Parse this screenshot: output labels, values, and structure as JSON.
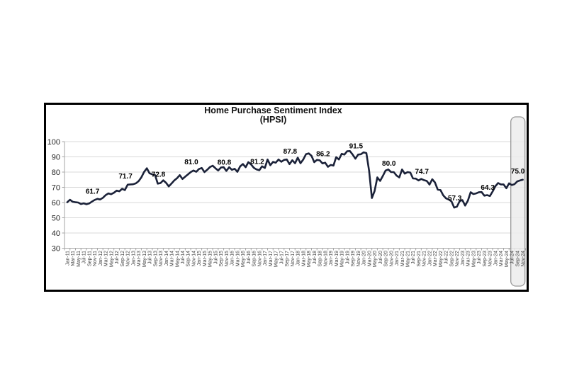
{
  "page": {
    "background": "#ffffff"
  },
  "header": {
    "title_line1": "Home Purchase Sentiment Index",
    "title_line2": "(HPSI)"
  },
  "chart_data": {
    "type": "line",
    "title": "Home Purchase Sentiment Index",
    "subtitle": "(HPSI)",
    "xlabel": "",
    "ylabel": "",
    "ylim": [
      30,
      100
    ],
    "y_ticks": [
      100,
      90,
      80,
      70,
      60,
      50,
      40,
      30
    ],
    "grid": "horizontal",
    "legend": "none",
    "frequency": "monthly",
    "start_month": "Jan-11",
    "end_month": "Nov-24",
    "x_tick_labels": [
      "Jan-11",
      "Mar-11",
      "May-11",
      "Jul-11",
      "Sep-11",
      "Nov-11",
      "Jan-12",
      "Mar-12",
      "May-12",
      "Jul-12",
      "Sep-12",
      "Nov-12",
      "Jan-13",
      "Mar-13",
      "May-13",
      "Jul-13",
      "Sep-13",
      "Nov-13",
      "Jan-14",
      "Mar-14",
      "May-14",
      "Jul-14",
      "Sep-14",
      "Nov-14",
      "Jan-15",
      "Mar-15",
      "May-15",
      "Jul-15",
      "Sep-15",
      "Nov-15",
      "Jan-16",
      "Mar-16",
      "May-16",
      "Jul-16",
      "Sep-16",
      "Nov-16",
      "Jan-17",
      "Mar-17",
      "May-17",
      "Jul-17",
      "Sep-17",
      "Nov-17",
      "Jan-18",
      "Mar-18",
      "May-18",
      "Jul-18",
      "Sep-18",
      "Nov-18",
      "Jan-19",
      "Mar-19",
      "May-19",
      "Jul-19",
      "Sep-19",
      "Nov-19",
      "Jan-20",
      "Mar-20",
      "May-20",
      "Jul-20",
      "Sep-20",
      "Nov-20",
      "Jan-21",
      "Mar-21",
      "May-21",
      "Jul-21",
      "Sep-21",
      "Nov-21",
      "Jan-22",
      "Mar-22",
      "May-22",
      "Jul-22",
      "Sep-22",
      "Nov-22",
      "Jan-23",
      "Mar-23",
      "May-23",
      "Jul-23",
      "Sep-23",
      "Nov-23",
      "Jan-24",
      "Mar-24",
      "May-24",
      "Jul-24",
      "Sep-24",
      "Nov-24"
    ],
    "series": [
      {
        "name": "HPSI",
        "color": "#1b2239",
        "values": [
          60.2,
          61.8,
          60.5,
          60.2,
          60.0,
          59.0,
          59.5,
          58.9,
          59.4,
          60.6,
          61.7,
          62.4,
          62.0,
          63.1,
          64.9,
          66.0,
          65.5,
          66.4,
          67.8,
          67.4,
          69.0,
          68.2,
          71.7,
          71.9,
          72.0,
          72.6,
          74.0,
          76.5,
          80.1,
          82.5,
          79.2,
          78.5,
          78.0,
          72.4,
          72.8,
          74.6,
          73.0,
          70.6,
          72.5,
          74.5,
          76.0,
          78.0,
          75.5,
          77.0,
          78.5,
          80.0,
          81.0,
          80.2,
          82.0,
          82.7,
          80.0,
          81.5,
          83.3,
          84.2,
          82.5,
          81.0,
          83.0,
          83.2,
          80.8,
          83.2,
          81.5,
          82.2,
          80.2,
          83.7,
          85.3,
          83.2,
          86.5,
          85.0,
          82.8,
          81.7,
          81.2,
          83.8,
          82.7,
          88.3,
          84.5,
          86.7,
          86.2,
          88.3,
          86.8,
          88.0,
          88.3,
          85.2,
          87.8,
          85.8,
          89.5,
          85.8,
          88.3,
          91.7,
          92.3,
          90.7,
          86.5,
          88.0,
          87.7,
          85.7,
          86.2,
          83.5,
          84.7,
          84.3,
          89.8,
          88.3,
          92.0,
          91.5,
          93.7,
          93.8,
          91.5,
          88.8,
          91.5,
          91.7,
          93.0,
          92.5,
          80.8,
          63.0,
          67.5,
          76.5,
          74.2,
          77.5,
          81.0,
          81.7,
          80.0,
          80.0,
          77.7,
          76.5,
          81.7,
          79.0,
          80.0,
          79.7,
          75.8,
          75.7,
          74.5,
          75.5,
          74.7,
          74.2,
          71.8,
          75.3,
          73.2,
          68.5,
          68.2,
          64.8,
          62.8,
          62.0,
          60.8,
          56.7,
          57.3,
          61.0,
          61.6,
          58.0,
          61.3,
          66.8,
          65.6,
          66.0,
          66.8,
          66.9,
          64.5,
          64.9,
          64.3,
          67.2,
          70.7,
          72.8,
          71.9,
          71.9,
          69.4,
          72.6,
          71.5,
          72.1,
          73.9,
          74.5,
          75.0
        ]
      }
    ],
    "point_labels": [
      {
        "month_index": 10,
        "month": "Nov-11",
        "text": "61.7"
      },
      {
        "month_index": 22,
        "month": "Nov-12",
        "text": "71.7"
      },
      {
        "month_index": 34,
        "month": "Nov-13",
        "text": "72.8"
      },
      {
        "month_index": 46,
        "month": "Nov-14",
        "text": "81.0"
      },
      {
        "month_index": 58,
        "month": "Nov-15",
        "text": "80.8"
      },
      {
        "month_index": 70,
        "month": "Nov-16",
        "text": "81.2"
      },
      {
        "month_index": 82,
        "month": "Nov-17",
        "text": "87.8"
      },
      {
        "month_index": 94,
        "month": "Nov-18",
        "text": "86.2"
      },
      {
        "month_index": 106,
        "month": "Nov-19",
        "text": "91.5"
      },
      {
        "month_index": 118,
        "month": "Nov-20",
        "text": "80.0"
      },
      {
        "month_index": 130,
        "month": "Nov-21",
        "text": "74.7"
      },
      {
        "month_index": 142,
        "month": "Nov-22",
        "text": "57.3"
      },
      {
        "month_index": 154,
        "month": "Nov-23",
        "text": "64.3"
      },
      {
        "month_index": 166,
        "month": "Nov-24",
        "text": "75.0"
      }
    ],
    "highlight": {
      "covers_labels": [
        "Sep-24",
        "Nov-24"
      ],
      "fill": "#ececec",
      "fill_opacity": 0.82,
      "border": "#999999"
    },
    "colors": {
      "line": "#1b2239",
      "grid": "#d9d9d9",
      "axis": "#a6a6a6",
      "y_tick_text": "#262626",
      "x_tick_text": "#404040",
      "point_label_text": "#000000",
      "frame_border": "#000000"
    }
  }
}
